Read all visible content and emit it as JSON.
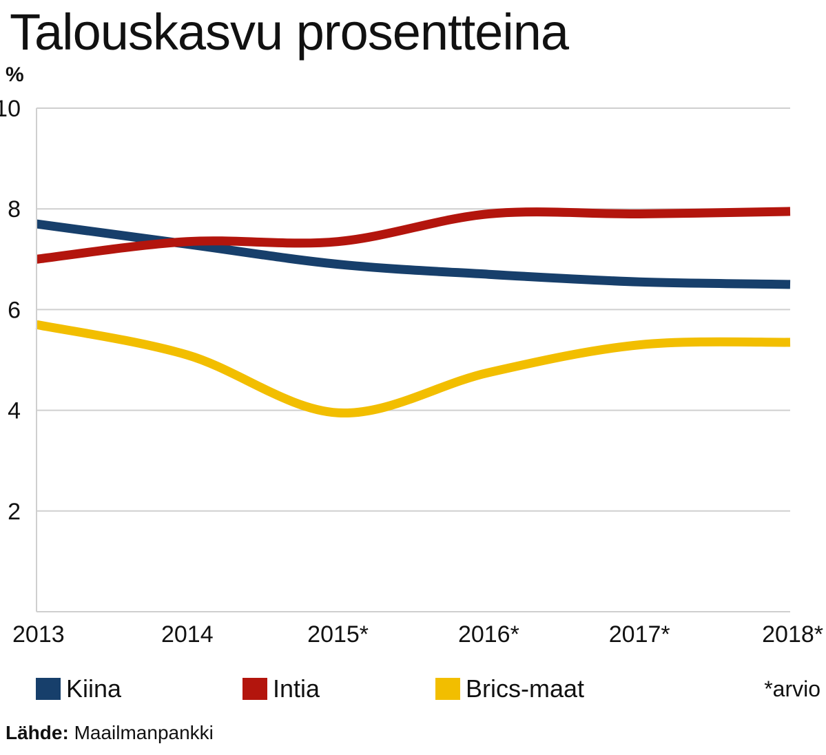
{
  "chart_data": {
    "type": "line",
    "title": "Talouskasvu prosentteina",
    "ylabel": "%",
    "x": [
      "2013",
      "2014",
      "2015*",
      "2016*",
      "2017*",
      "2018*"
    ],
    "yticks": [
      2,
      4,
      6,
      8,
      10
    ],
    "ylim": [
      0,
      10
    ],
    "grid": true,
    "legend_position": "bottom",
    "series": [
      {
        "name": "Kiina",
        "color": "#173f6b",
        "values": [
          7.7,
          7.3,
          6.9,
          6.7,
          6.55,
          6.5
        ]
      },
      {
        "name": "Intia",
        "color": "#b3150d",
        "values": [
          7.0,
          7.35,
          7.35,
          7.9,
          7.9,
          7.95
        ]
      },
      {
        "name": "Brics-maat",
        "color": "#f2be00",
        "values": [
          5.7,
          5.1,
          3.95,
          4.75,
          5.3,
          5.35
        ]
      }
    ],
    "note": "*arvio",
    "source_label": "Lähde:",
    "source": "Maailmanpankki"
  }
}
